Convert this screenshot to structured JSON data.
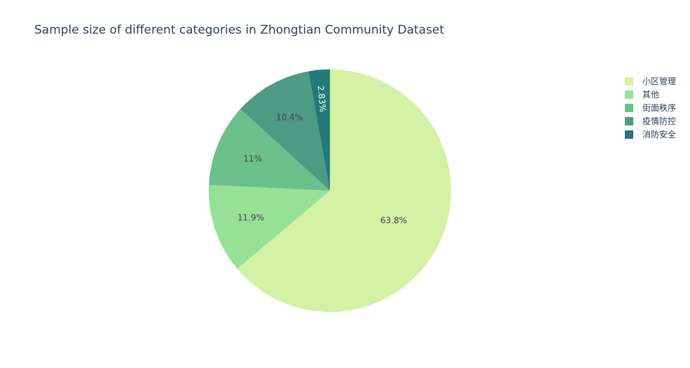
{
  "chart_data": {
    "type": "pie",
    "title": "Sample size of different categories in Zhongtian Community Dataset",
    "labels": [
      "小区管理",
      "其他",
      "街面秩序",
      "疫情防控",
      "消防安全"
    ],
    "values": [
      63.8,
      11.9,
      11,
      10.4,
      2.83
    ],
    "value_labels": [
      "63.8%",
      "11.9%",
      "11%",
      "10.4%",
      "2.83%"
    ],
    "colors": [
      "#d3f2a3",
      "#97e196",
      "#6cc08b",
      "#4c9b82",
      "#217a79"
    ],
    "direction": "clockwise",
    "legend": "top-right"
  }
}
